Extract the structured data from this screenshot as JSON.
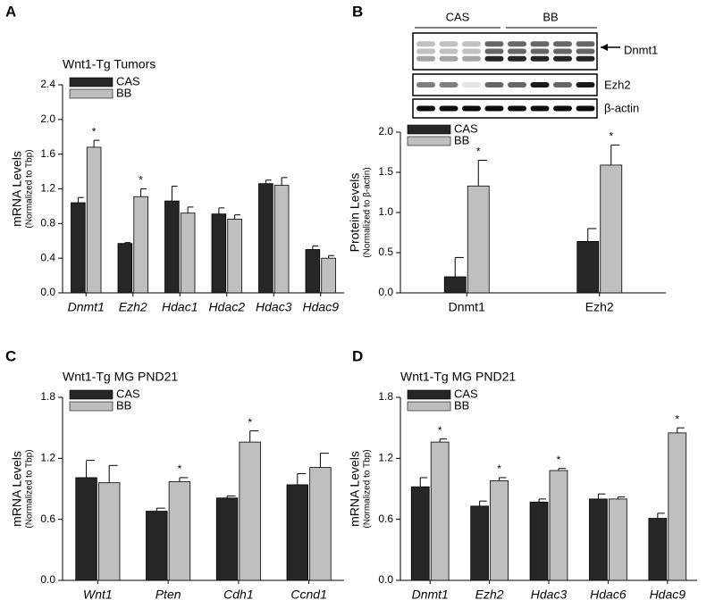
{
  "blot": {
    "groups": [
      "CAS",
      "BB"
    ],
    "bands": [
      "Dnmt1",
      "Ezh2",
      "β-actin"
    ]
  },
  "chart_data": [
    {
      "type": "bar",
      "panel": "A",
      "title": "Wnt1-Tg Tumors",
      "y_label": "mRNA Levels",
      "y_sublabel": "(Normalized to Tbp)",
      "italic_categories": true,
      "categories": [
        "Dnmt1",
        "Ezh2",
        "Hdac1",
        "Hdac2",
        "Hdac3",
        "Hdac9"
      ],
      "series": [
        {
          "name": "CAS",
          "color": "#262626",
          "values": [
            1.04,
            0.57,
            1.06,
            0.91,
            1.26,
            0.5
          ],
          "errors": [
            0.06,
            0.01,
            0.17,
            0.07,
            0.04,
            0.04
          ],
          "markers": [
            null,
            null,
            null,
            null,
            null,
            null
          ]
        },
        {
          "name": "BB",
          "color": "#bfbfbf",
          "values": [
            1.68,
            1.11,
            0.92,
            0.85,
            1.24,
            0.4
          ],
          "errors": [
            0.08,
            0.09,
            0.07,
            0.05,
            0.09,
            0.03
          ],
          "markers": [
            "*",
            "*",
            null,
            null,
            null,
            null
          ]
        }
      ],
      "ylim": [
        0,
        2.4
      ],
      "yticks": [
        {
          "value": 0,
          "label": "0.0"
        },
        0.4,
        0.8,
        1.2,
        1.6,
        {
          "value": 2,
          "label": "2.0"
        },
        2.4
      ]
    },
    {
      "type": "bar",
      "panel": "B",
      "y_label": "Protein Levels",
      "y_sublabel": "(Normalized to β-actin)",
      "italic_categories": false,
      "categories": [
        "Dnmt1",
        "Ezh2"
      ],
      "series": [
        {
          "name": "CAS",
          "color": "#262626",
          "values": [
            0.2,
            0.64
          ],
          "errors": [
            0.24,
            0.16
          ],
          "markers": [
            null,
            null
          ]
        },
        {
          "name": "BB",
          "color": "#bfbfbf",
          "values": [
            1.33,
            1.59
          ],
          "errors": [
            0.32,
            0.25
          ],
          "markers": [
            "*",
            "*"
          ]
        }
      ],
      "ylim": [
        0,
        2
      ],
      "yticks": [
        {
          "value": 0,
          "label": "0.0"
        },
        0.5,
        {
          "value": 1,
          "label": "1.0"
        },
        1.5,
        {
          "value": 2,
          "label": "2.0"
        }
      ]
    },
    {
      "type": "bar",
      "panel": "C",
      "title": "Wnt1-Tg MG PND21",
      "y_label": "mRNA Levels",
      "y_sublabel": "(Normalized to Tbp)",
      "italic_categories": true,
      "categories": [
        "Wnt1",
        "Pten",
        "Cdh1",
        "Ccnd1"
      ],
      "series": [
        {
          "name": "CAS",
          "color": "#262626",
          "values": [
            1.01,
            0.68,
            0.81,
            0.94
          ],
          "errors": [
            0.17,
            0.03,
            0.02,
            0.11
          ],
          "markers": [
            null,
            null,
            null,
            null
          ]
        },
        {
          "name": "BB",
          "color": "#bfbfbf",
          "values": [
            0.96,
            0.97,
            1.36,
            1.11
          ],
          "errors": [
            0.17,
            0.04,
            0.11,
            0.14
          ],
          "markers": [
            null,
            "*",
            "*",
            null
          ]
        }
      ],
      "ylim": [
        0,
        1.8
      ],
      "yticks": [
        {
          "value": 0,
          "label": "0.0"
        },
        0.6,
        1.2,
        1.8
      ]
    },
    {
      "type": "bar",
      "panel": "D",
      "title": "Wnt1-Tg MG PND21",
      "y_label": "mRNA Levels",
      "y_sublabel": "(Normalized to Tbp)",
      "italic_categories": true,
      "categories": [
        "Dnmt1",
        "Ezh2",
        "Hdac3",
        "Hdac6",
        "Hdac9"
      ],
      "series": [
        {
          "name": "CAS",
          "color": "#262626",
          "values": [
            0.92,
            0.73,
            0.77,
            0.8,
            0.61
          ],
          "errors": [
            0.09,
            0.05,
            0.03,
            0.05,
            0.05
          ],
          "markers": [
            null,
            null,
            null,
            null,
            null
          ]
        },
        {
          "name": "BB",
          "color": "#bfbfbf",
          "values": [
            1.36,
            0.98,
            1.08,
            0.8,
            1.45
          ],
          "errors": [
            0.03,
            0.03,
            0.02,
            0.02,
            0.05
          ],
          "markers": [
            "*",
            "*",
            "*",
            null,
            "*"
          ]
        }
      ],
      "ylim": [
        0,
        1.8
      ],
      "yticks": [
        {
          "value": 0,
          "label": "0.0"
        },
        0.6,
        1.2,
        1.8
      ]
    }
  ]
}
